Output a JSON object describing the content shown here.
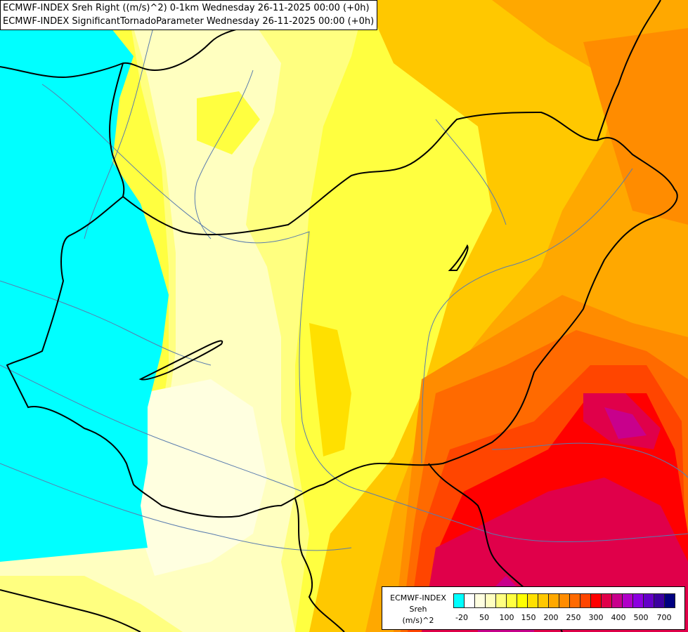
{
  "titles": {
    "line1": "ECMWF-INDEX Sreh Right ((m/s)^2) 0-1km Wednesday 26-11-2025 00:00 (+0h)",
    "line2": "ECMWF-INDEX SignificantTornadoParameter Wednesday 26-11-2025 00:00 (+0h)"
  },
  "legend": {
    "title_lines": [
      "ECMWF-INDEX",
      "Sreh",
      "(m/s)^2"
    ],
    "colors": [
      "#00ffff",
      "#ffffff",
      "#ffffe0",
      "#ffffc0",
      "#ffff80",
      "#ffff40",
      "#ffff00",
      "#ffe000",
      "#ffc800",
      "#ffa800",
      "#ff8c00",
      "#ff6a00",
      "#ff4500",
      "#ff0000",
      "#e0004a",
      "#c8008c",
      "#b000c8",
      "#8c00e0",
      "#6400c8",
      "#3c00a0",
      "#000080"
    ],
    "tick_labels": [
      "-20",
      "50",
      "100",
      "150",
      "200",
      "250",
      "300",
      "400",
      "500",
      "700"
    ]
  },
  "map_layers": {
    "background": "#ffff40",
    "border_color": "#000000",
    "river_color": "#5a7cae"
  }
}
